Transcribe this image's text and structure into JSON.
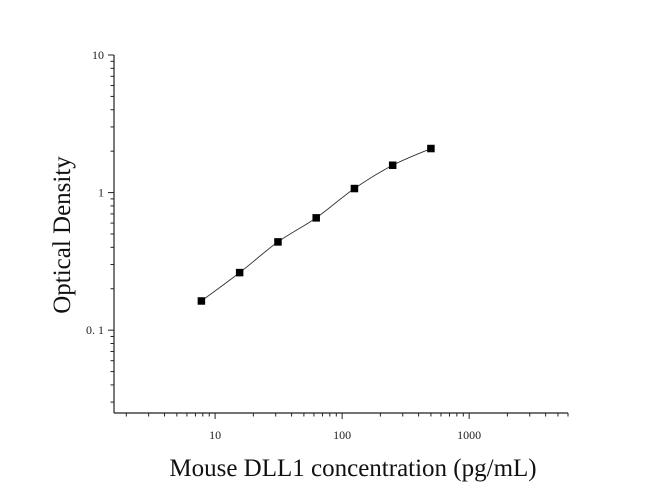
{
  "chart_data": {
    "type": "scatter",
    "title": "",
    "xlabel": "Mouse DLL1 concentration (pg/mL)",
    "ylabel": "Optical Density",
    "x_scale": "log",
    "y_scale": "log",
    "xlim": [
      1.6,
      6000
    ],
    "ylim": [
      0.025,
      10
    ],
    "x_ticks": [
      10,
      100,
      1000
    ],
    "x_tick_labels": [
      "10",
      "100",
      "1000"
    ],
    "y_ticks": [
      0.1,
      1,
      10
    ],
    "y_tick_labels": [
      "0. 1",
      "1",
      "10"
    ],
    "grid": false,
    "legend": "none",
    "series": [
      {
        "marker": "square",
        "color": "#000000",
        "fit_line": true,
        "x": [
          7.8,
          15.6,
          31.25,
          62.5,
          125,
          250,
          500
        ],
        "y": [
          0.163,
          0.262,
          0.438,
          0.655,
          1.07,
          1.58,
          2.09
        ]
      }
    ]
  }
}
